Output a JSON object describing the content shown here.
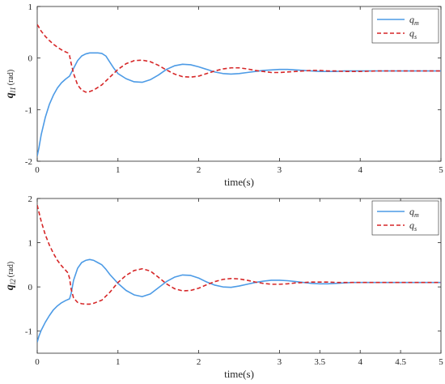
{
  "chart_data": [
    {
      "type": "line",
      "xlabel": "time(s)",
      "ylabel": {
        "main": "q",
        "sub": "l1",
        "unit": "(rad)"
      },
      "xlim": [
        0,
        5
      ],
      "ylim": [
        -2,
        1
      ],
      "xticks": [
        "0",
        "1",
        "2",
        "3",
        "4",
        "5"
      ],
      "xtick_values": [
        0,
        1,
        2,
        3,
        4,
        5
      ],
      "yticks": [
        "-2",
        "-1",
        "0",
        "1"
      ],
      "ytick_values": [
        -2,
        -1,
        0,
        1
      ],
      "grid": false,
      "legend_position": "top-right",
      "series": [
        {
          "name": "q",
          "name_sub": "m",
          "color": "#4d9be6",
          "dash": "solid",
          "x": [
            0,
            0.02,
            0.05,
            0.1,
            0.15,
            0.2,
            0.25,
            0.3,
            0.35,
            0.4,
            0.45,
            0.5,
            0.55,
            0.6,
            0.65,
            0.7,
            0.75,
            0.8,
            0.85,
            0.9,
            0.95,
            1.0,
            1.1,
            1.2,
            1.3,
            1.4,
            1.5,
            1.6,
            1.7,
            1.8,
            1.9,
            2.0,
            2.1,
            2.2,
            2.3,
            2.4,
            2.5,
            2.6,
            2.7,
            2.8,
            2.9,
            3.0,
            3.1,
            3.2,
            3.3,
            3.4,
            3.5,
            3.6,
            3.7,
            3.8,
            3.9,
            4.0,
            4.1,
            4.2,
            4.3,
            4.4,
            4.5,
            4.6,
            4.7,
            4.8,
            4.9,
            5.0
          ],
          "y": [
            -1.9,
            -1.75,
            -1.48,
            -1.15,
            -0.9,
            -0.72,
            -0.58,
            -0.48,
            -0.41,
            -0.35,
            -0.2,
            -0.05,
            0.04,
            0.08,
            0.1,
            0.1,
            0.1,
            0.09,
            0.04,
            -0.08,
            -0.2,
            -0.3,
            -0.4,
            -0.46,
            -0.47,
            -0.42,
            -0.33,
            -0.22,
            -0.15,
            -0.12,
            -0.13,
            -0.17,
            -0.22,
            -0.27,
            -0.3,
            -0.31,
            -0.3,
            -0.28,
            -0.26,
            -0.24,
            -0.23,
            -0.22,
            -0.22,
            -0.23,
            -0.24,
            -0.25,
            -0.26,
            -0.26,
            -0.26,
            -0.25,
            -0.25,
            -0.25,
            -0.25,
            -0.25,
            -0.25,
            -0.25,
            -0.25,
            -0.25,
            -0.25,
            -0.25,
            -0.25,
            -0.25
          ]
        },
        {
          "name": "q",
          "name_sub": "s",
          "color": "#d62728",
          "dash": "dashed",
          "x": [
            0,
            0.02,
            0.05,
            0.1,
            0.15,
            0.2,
            0.25,
            0.3,
            0.35,
            0.38,
            0.4,
            0.42,
            0.45,
            0.5,
            0.55,
            0.6,
            0.65,
            0.7,
            0.8,
            0.9,
            1.0,
            1.1,
            1.2,
            1.3,
            1.4,
            1.5,
            1.6,
            1.7,
            1.8,
            1.9,
            2.0,
            2.1,
            2.2,
            2.3,
            2.4,
            2.5,
            2.6,
            2.7,
            2.8,
            2.9,
            3.0,
            3.1,
            3.2,
            3.3,
            3.4,
            3.5,
            3.6,
            3.7,
            3.8,
            3.9,
            4.0,
            4.2,
            4.4,
            4.6,
            4.8,
            5.0
          ],
          "y": [
            0.65,
            0.6,
            0.52,
            0.42,
            0.34,
            0.27,
            0.21,
            0.16,
            0.12,
            0.1,
            0.05,
            -0.1,
            -0.3,
            -0.52,
            -0.62,
            -0.66,
            -0.65,
            -0.62,
            -0.52,
            -0.37,
            -0.22,
            -0.11,
            -0.05,
            -0.04,
            -0.07,
            -0.14,
            -0.23,
            -0.31,
            -0.36,
            -0.37,
            -0.35,
            -0.3,
            -0.25,
            -0.21,
            -0.19,
            -0.19,
            -0.21,
            -0.24,
            -0.26,
            -0.28,
            -0.28,
            -0.27,
            -0.26,
            -0.25,
            -0.24,
            -0.24,
            -0.25,
            -0.25,
            -0.26,
            -0.26,
            -0.26,
            -0.25,
            -0.25,
            -0.25,
            -0.25,
            -0.25
          ]
        }
      ]
    },
    {
      "type": "line",
      "xlabel": "time(s)",
      "ylabel": {
        "main": "q",
        "sub": "l2",
        "unit": "(rad)"
      },
      "xlim": [
        0,
        5
      ],
      "ylim": [
        -1.5,
        2
      ],
      "xticks": [
        "0",
        "1",
        "2",
        "3",
        "3.5",
        "4",
        "4.5",
        "5"
      ],
      "xtick_values": [
        0,
        1,
        2,
        3,
        3.5,
        4,
        4.5,
        5
      ],
      "yticks": [
        "-1",
        "0",
        "1",
        "2"
      ],
      "ytick_values": [
        -1,
        0,
        1,
        2
      ],
      "grid": false,
      "legend_position": "top-right",
      "series": [
        {
          "name": "q",
          "name_sub": "m",
          "color": "#4d9be6",
          "dash": "solid",
          "x": [
            0,
            0.02,
            0.05,
            0.1,
            0.15,
            0.2,
            0.25,
            0.3,
            0.35,
            0.4,
            0.42,
            0.45,
            0.5,
            0.55,
            0.6,
            0.65,
            0.7,
            0.75,
            0.8,
            0.85,
            0.9,
            1.0,
            1.1,
            1.2,
            1.3,
            1.4,
            1.5,
            1.6,
            1.7,
            1.8,
            1.9,
            2.0,
            2.1,
            2.2,
            2.3,
            2.4,
            2.5,
            2.6,
            2.7,
            2.8,
            2.9,
            3.0,
            3.1,
            3.2,
            3.3,
            3.4,
            3.5,
            3.6,
            3.7,
            3.8,
            3.9,
            4.0,
            4.2,
            4.4,
            4.6,
            4.8,
            5.0
          ],
          "y": [
            -1.25,
            -1.12,
            -0.98,
            -0.8,
            -0.65,
            -0.52,
            -0.43,
            -0.36,
            -0.31,
            -0.27,
            -0.15,
            0.15,
            0.42,
            0.55,
            0.6,
            0.62,
            0.6,
            0.55,
            0.5,
            0.4,
            0.28,
            0.08,
            -0.08,
            -0.18,
            -0.22,
            -0.16,
            -0.02,
            0.12,
            0.22,
            0.27,
            0.26,
            0.2,
            0.11,
            0.04,
            0.0,
            -0.01,
            0.02,
            0.06,
            0.1,
            0.13,
            0.15,
            0.15,
            0.14,
            0.12,
            0.1,
            0.08,
            0.07,
            0.07,
            0.08,
            0.09,
            0.1,
            0.1,
            0.1,
            0.1,
            0.1,
            0.1,
            0.1
          ]
        },
        {
          "name": "q",
          "name_sub": "s",
          "color": "#d62728",
          "dash": "dashed",
          "x": [
            0,
            0.02,
            0.05,
            0.1,
            0.15,
            0.2,
            0.25,
            0.3,
            0.35,
            0.38,
            0.4,
            0.42,
            0.45,
            0.5,
            0.55,
            0.6,
            0.65,
            0.7,
            0.8,
            0.9,
            1.0,
            1.1,
            1.2,
            1.3,
            1.4,
            1.5,
            1.6,
            1.7,
            1.8,
            1.9,
            2.0,
            2.1,
            2.2,
            2.3,
            2.4,
            2.5,
            2.6,
            2.7,
            2.8,
            2.9,
            3.0,
            3.1,
            3.2,
            3.3,
            3.4,
            3.5,
            3.6,
            3.7,
            3.8,
            3.9,
            4.0,
            4.2,
            4.4,
            4.6,
            4.8,
            5.0
          ],
          "y": [
            1.85,
            1.7,
            1.48,
            1.18,
            0.95,
            0.76,
            0.6,
            0.48,
            0.38,
            0.32,
            0.2,
            -0.05,
            -0.25,
            -0.35,
            -0.38,
            -0.39,
            -0.39,
            -0.37,
            -0.3,
            -0.12,
            0.1,
            0.26,
            0.37,
            0.41,
            0.36,
            0.22,
            0.07,
            -0.04,
            -0.09,
            -0.08,
            -0.03,
            0.05,
            0.12,
            0.17,
            0.19,
            0.18,
            0.15,
            0.11,
            0.08,
            0.06,
            0.06,
            0.07,
            0.09,
            0.1,
            0.11,
            0.11,
            0.11,
            0.1,
            0.1,
            0.1,
            0.1,
            0.1,
            0.1,
            0.1,
            0.1,
            0.1
          ]
        }
      ]
    }
  ]
}
